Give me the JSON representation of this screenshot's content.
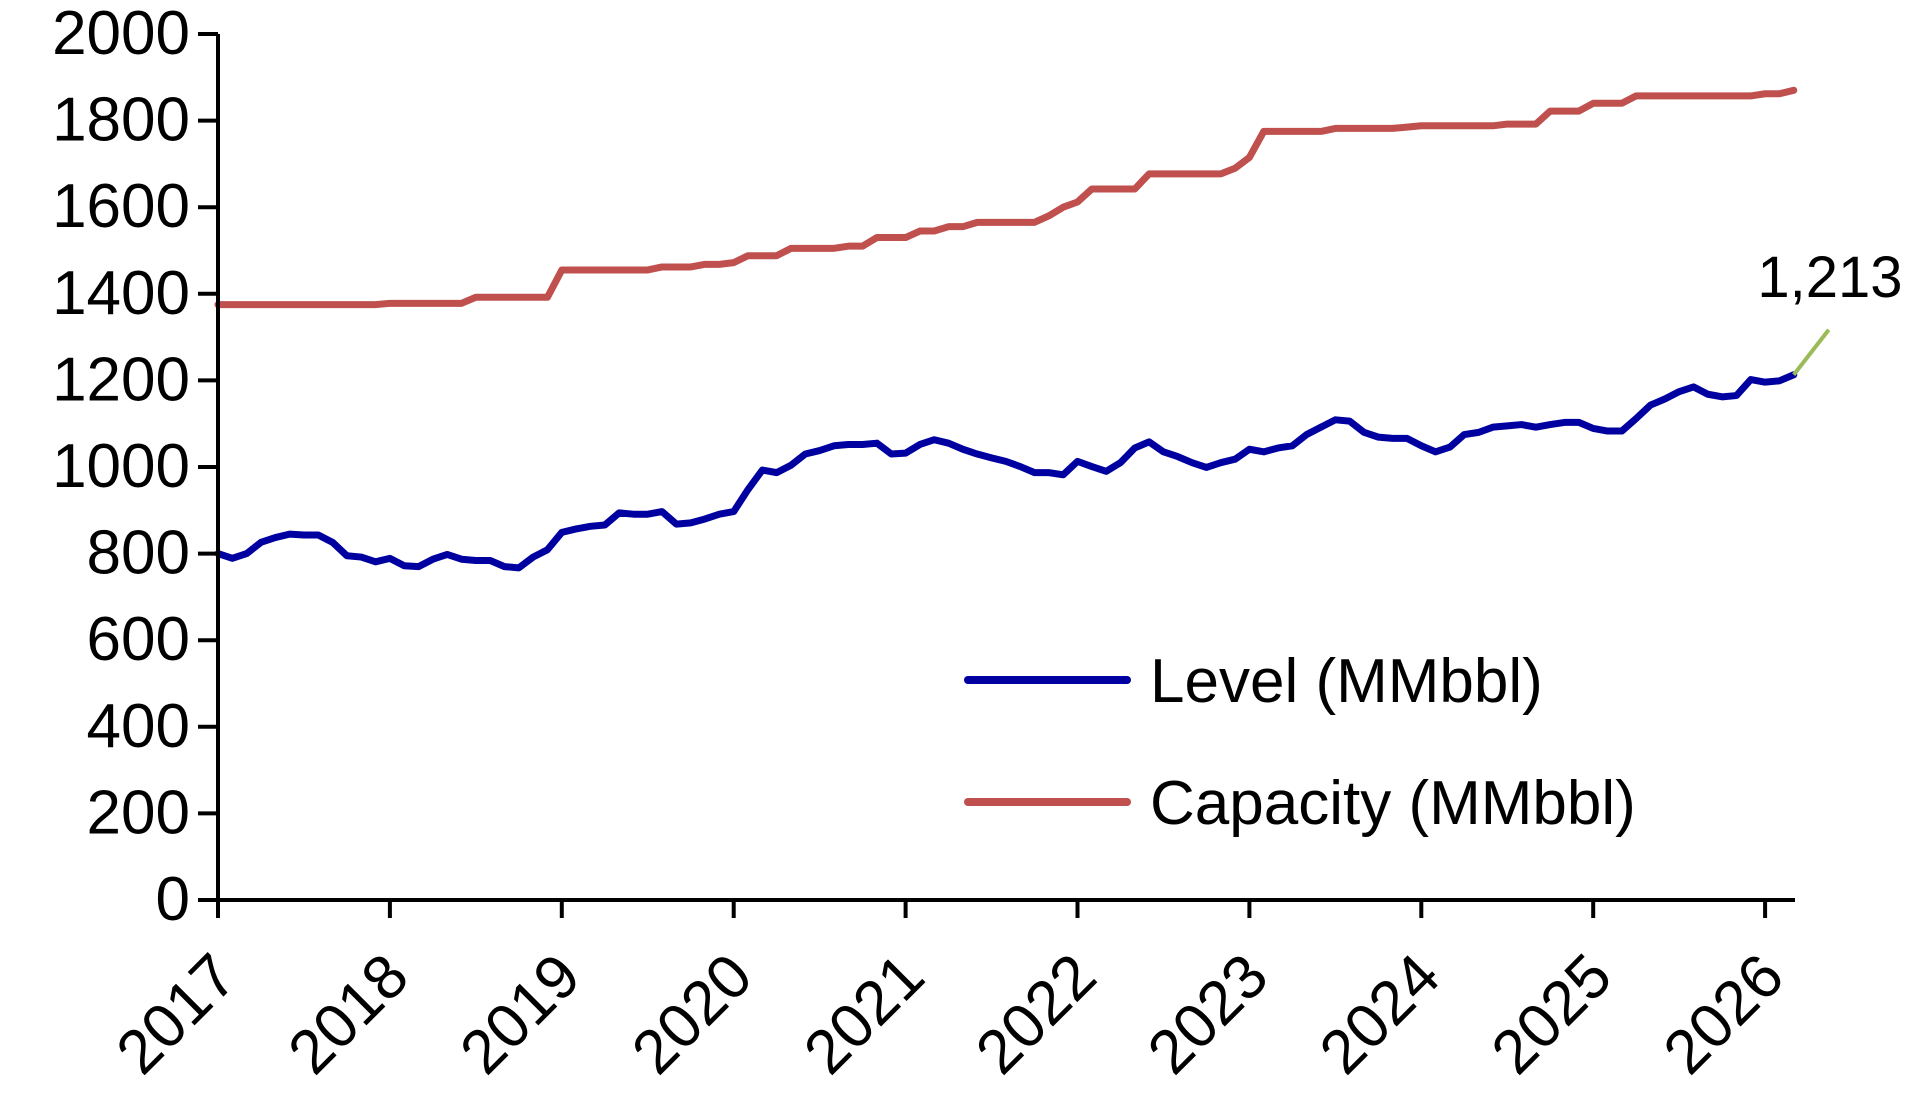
{
  "chart_data": {
    "type": "line",
    "title": "",
    "xlabel": "",
    "ylabel": "",
    "x_start": "2017-01",
    "x_frequency": "monthly",
    "x_ticks": [
      "2017",
      "2018",
      "2019",
      "2020",
      "2021",
      "2022",
      "2023",
      "2024",
      "2025",
      "2026"
    ],
    "xlim": [
      2017,
      2026.17
    ],
    "ylim": [
      0,
      2000
    ],
    "y_ticks": [
      "0",
      "200",
      "400",
      "600",
      "800",
      "1000",
      "1200",
      "1400",
      "1600",
      "1800",
      "2000"
    ],
    "grid": false,
    "legend": "bottom-right",
    "series": [
      {
        "name": "Level (MMbbl)",
        "color": "#0000A0",
        "values": [
          800,
          789,
          800,
          826,
          837,
          845,
          843,
          843,
          826,
          795,
          792,
          781,
          789,
          772,
          770,
          787,
          798,
          787,
          784,
          784,
          770,
          767,
          792,
          809,
          849,
          857,
          863,
          866,
          894,
          891,
          891,
          897,
          868,
          871,
          880,
          891,
          897,
          948,
          993,
          987,
          1004,
          1030,
          1038,
          1049,
          1052,
          1052,
          1055,
          1030,
          1032,
          1052,
          1063,
          1055,
          1041,
          1030,
          1021,
          1013,
          1001,
          987,
          987,
          982,
          1013,
          1001,
          990,
          1010,
          1044,
          1058,
          1035,
          1024,
          1010,
          999,
          1010,
          1018,
          1041,
          1035,
          1044,
          1049,
          1075,
          1092,
          1109,
          1106,
          1080,
          1069,
          1066,
          1066,
          1049,
          1035,
          1046,
          1075,
          1080,
          1092,
          1095,
          1098,
          1092,
          1098,
          1103,
          1103,
          1089,
          1083,
          1083,
          1112,
          1143,
          1157,
          1174,
          1185,
          1168,
          1162,
          1165,
          1202,
          1196,
          1199,
          1213
        ]
      },
      {
        "name": "Capacity (MMbbl)",
        "color": "#C0504D",
        "values": [
          1375,
          1375,
          1375,
          1375,
          1375,
          1375,
          1375,
          1375,
          1375,
          1375,
          1375,
          1375,
          1378,
          1378,
          1378,
          1378,
          1378,
          1378,
          1392,
          1392,
          1392,
          1392,
          1392,
          1392,
          1455,
          1455,
          1455,
          1455,
          1455,
          1455,
          1455,
          1462,
          1462,
          1462,
          1468,
          1468,
          1472,
          1488,
          1488,
          1488,
          1505,
          1505,
          1505,
          1505,
          1510,
          1510,
          1530,
          1530,
          1530,
          1545,
          1545,
          1555,
          1555,
          1565,
          1565,
          1565,
          1565,
          1565,
          1580,
          1600,
          1612,
          1642,
          1642,
          1642,
          1642,
          1677,
          1677,
          1677,
          1677,
          1677,
          1677,
          1690,
          1715,
          1775,
          1775,
          1775,
          1775,
          1775,
          1782,
          1782,
          1782,
          1782,
          1782,
          1785,
          1788,
          1788,
          1788,
          1788,
          1788,
          1788,
          1792,
          1792,
          1792,
          1822,
          1822,
          1822,
          1840,
          1840,
          1840,
          1857,
          1857,
          1857,
          1857,
          1857,
          1857,
          1857,
          1857,
          1857,
          1862,
          1862,
          1870
        ]
      }
    ],
    "annotations": [
      {
        "text": "1,213",
        "series": "Level (MMbbl)",
        "point": "last",
        "leader_color": "#9BBB59"
      }
    ]
  }
}
